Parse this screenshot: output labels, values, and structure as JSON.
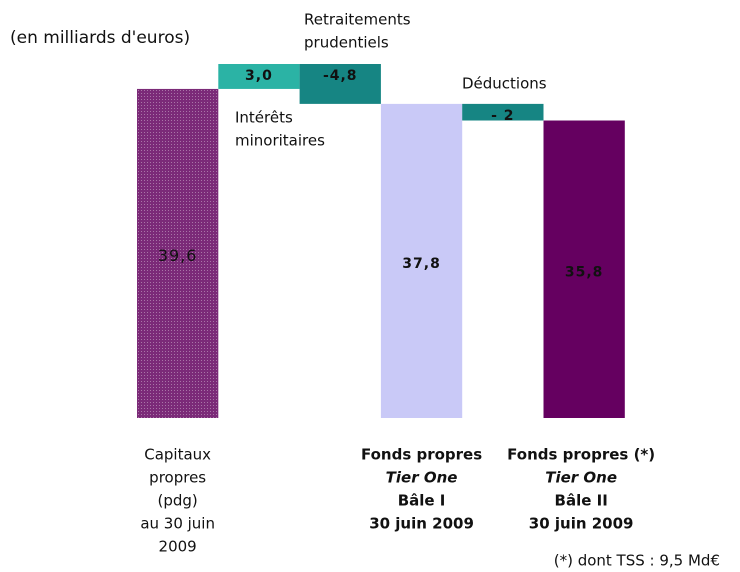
{
  "chart_data": {
    "type": "waterfall",
    "subtitle": "(en milliards d'euros)",
    "categories": [
      [
        "Capitaux",
        "propres",
        "(pdg)",
        "au 30 juin",
        "2009"
      ],
      null,
      null,
      [
        "Fonds propres",
        "Tier One",
        "Bâle I",
        "30 juin 2009"
      ],
      null,
      [
        "Fonds propres (*)",
        "Tier One",
        "Bâle II",
        "30 juin 2009"
      ]
    ],
    "measure": [
      "absolute",
      "relative",
      "relative",
      "absolute",
      "relative",
      "absolute"
    ],
    "values": [
      39.6,
      3.0,
      -4.8,
      37.8,
      -2,
      35.8
    ],
    "value_labels": [
      "39,6",
      "3,0",
      "-4,8",
      "37,8",
      "- 2",
      "35,8"
    ],
    "colors": [
      "#7b2a78",
      "#2bb3a5",
      "#168583",
      "#c9c9f7",
      "#168583",
      "#650060"
    ],
    "annotations": [
      {
        "text": [
          "Retraitements",
          "prudentiels"
        ]
      },
      {
        "text": [
          "Intérêts",
          "minoritaires"
        ]
      },
      {
        "text": [
          "Déductions"
        ]
      }
    ],
    "footnote": "(*) dont TSS : 9,5 Md€"
  }
}
